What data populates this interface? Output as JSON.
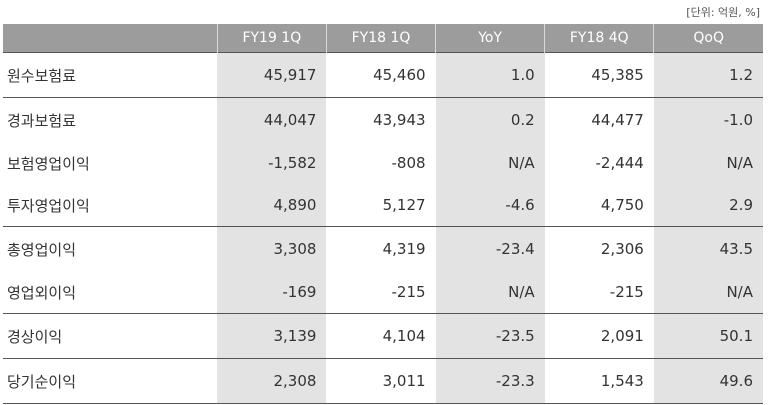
{
  "unit_note": "[단위: 억원, %]",
  "headers": [
    "",
    "FY19 1Q",
    "FY18 1Q",
    "YoY",
    "FY18 4Q",
    "QoQ"
  ],
  "rows": [
    {
      "label": "원수보험료",
      "values": [
        "45,917",
        "45,460",
        "1.0",
        "45,385",
        "1.2"
      ]
    },
    {
      "label": "경과보험료",
      "values": [
        "44,047",
        "43,943",
        "0.2",
        "44,477",
        "-1.0"
      ]
    },
    {
      "label": "보험영업이익",
      "values": [
        "-1,582",
        "-808",
        "N/A",
        "-2,444",
        "N/A"
      ]
    },
    {
      "label": "투자영업이익",
      "values": [
        "4,890",
        "5,127",
        "-4.6",
        "4,750",
        "2.9"
      ]
    },
    {
      "label": "총영업이익",
      "values": [
        "3,308",
        "4,319",
        "-23.4",
        "2,306",
        "43.5"
      ]
    },
    {
      "label": "영업외이익",
      "values": [
        "-169",
        "-215",
        "N/A",
        "-215",
        "N/A"
      ]
    },
    {
      "label": "경상이익",
      "values": [
        "3,139",
        "4,104",
        "-23.5",
        "2,091",
        "50.1"
      ]
    },
    {
      "label": "당기순이익",
      "values": [
        "2,308",
        "3,011",
        "-23.3",
        "1,543",
        "49.6"
      ]
    }
  ]
}
